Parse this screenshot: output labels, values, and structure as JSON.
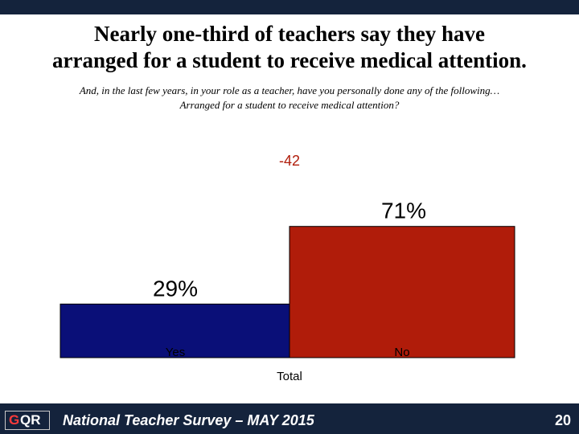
{
  "header": {
    "title_line1": "Nearly one-third of teachers say they have",
    "title_line2": "arranged for a student to receive medical attention.",
    "subtitle_line1": "And, in the last few years, in your role as a teacher, have you personally done any of the following…",
    "subtitle_line2": "Arranged for a student to receive medical attention?"
  },
  "chart_data": {
    "type": "bar",
    "categories": [
      "Yes",
      "No"
    ],
    "values": [
      29,
      71
    ],
    "data_labels": [
      "29%",
      "71%"
    ],
    "net_label": "-42",
    "xlabel": "Total",
    "ylim": [
      0,
      100
    ],
    "colors": [
      "#0a0f78",
      "#b01c0a"
    ],
    "grid": false
  },
  "footer": {
    "logo_text_1": "G",
    "logo_text_2": "QR",
    "survey_label": "National Teacher Survey – MAY 2015",
    "page_number": "20"
  }
}
